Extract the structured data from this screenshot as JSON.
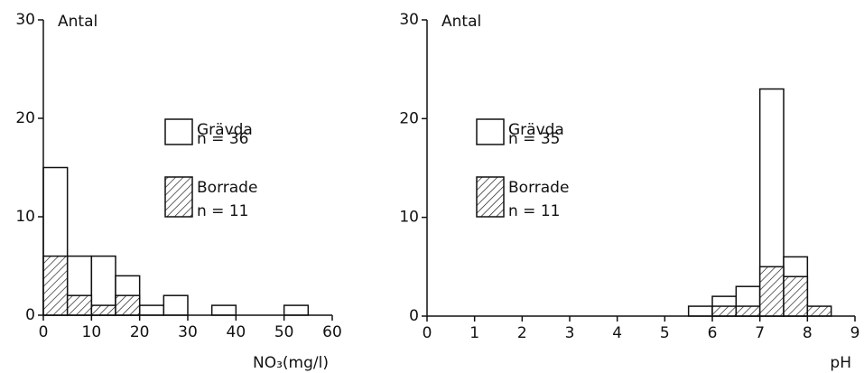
{
  "chart_data": [
    {
      "type": "histogram",
      "ylabel": "Antal",
      "xlabel": "NO₃(mg/l)",
      "bins": [
        0,
        5,
        10,
        15,
        20,
        25,
        30,
        35,
        40,
        45,
        50,
        55,
        60
      ],
      "series": [
        {
          "name": "Grävda",
          "note": "n = 36",
          "color": "#ffffff",
          "values": [
            15,
            6,
            6,
            4,
            1,
            2,
            0,
            1,
            0,
            0,
            1,
            0
          ]
        },
        {
          "name": "Borrade",
          "note": "n = 11",
          "color": "hatch",
          "values": [
            6,
            2,
            1,
            2,
            0,
            0,
            0,
            0,
            0,
            0,
            0,
            0
          ]
        }
      ],
      "xlim": [
        0,
        60
      ],
      "xticks": [
        0,
        10,
        20,
        30,
        40,
        50,
        60
      ],
      "ylim": [
        0,
        30
      ],
      "yticks": [
        0,
        10,
        20,
        30
      ]
    },
    {
      "type": "histogram",
      "ylabel": "Antal",
      "xlabel": "pH",
      "bins": [
        0,
        0.5,
        1,
        1.5,
        2,
        2.5,
        3,
        3.5,
        4,
        4.5,
        5,
        5.5,
        6,
        6.5,
        7,
        7.5,
        8,
        8.5,
        9
      ],
      "series": [
        {
          "name": "Grävda",
          "note": "n = 35",
          "color": "#ffffff",
          "values": [
            0,
            0,
            0,
            0,
            0,
            0,
            0,
            0,
            0,
            0,
            0,
            1,
            2,
            3,
            23,
            6,
            0,
            0
          ]
        },
        {
          "name": "Borrade",
          "note": "n = 11",
          "color": "hatch",
          "values": [
            0,
            0,
            0,
            0,
            0,
            0,
            0,
            0,
            0,
            0,
            0,
            0,
            1,
            1,
            5,
            4,
            1,
            0
          ]
        }
      ],
      "xlim": [
        0,
        9
      ],
      "xticks": [
        0,
        1,
        2,
        3,
        4,
        5,
        6,
        7,
        8,
        9
      ],
      "ylim": [
        0,
        30
      ],
      "yticks": [
        0,
        10,
        20,
        30
      ]
    }
  ]
}
